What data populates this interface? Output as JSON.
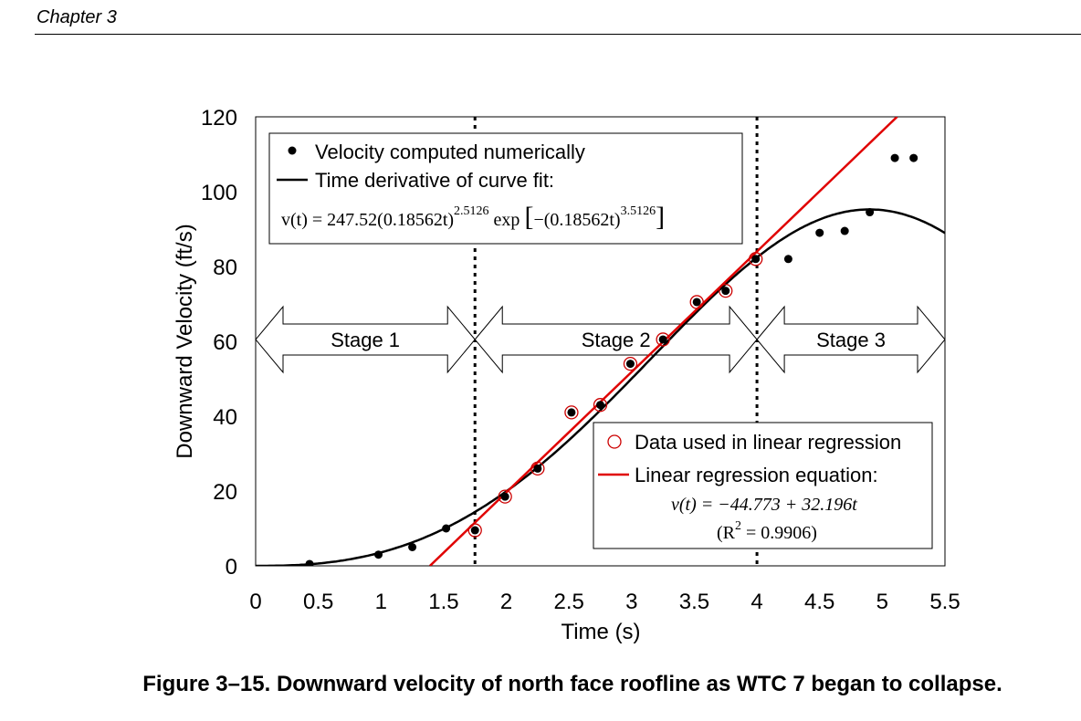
{
  "header": {
    "chapter": "Chapter 3"
  },
  "caption": "Figure 3–15.  Downward velocity of north face roofline as WTC 7 began to collapse.",
  "chart_data": {
    "type": "scatter",
    "xlabel": "Time (s)",
    "ylabel": "Downward Velocity (ft/s)",
    "xlim": [
      0,
      5.5
    ],
    "ylim": [
      0,
      120
    ],
    "xticks": [
      "0",
      "0.5",
      "1",
      "1.5",
      "2",
      "2.5",
      "3",
      "3.5",
      "4",
      "4.5",
      "5",
      "5.5"
    ],
    "yticks": [
      "0",
      "20",
      "40",
      "60",
      "80",
      "100",
      "120"
    ],
    "stage_boundaries": [
      1.75,
      4.0
    ],
    "stages": [
      "Stage 1",
      "Stage 2",
      "Stage 3"
    ],
    "series": [
      {
        "name": "Velocity computed numerically",
        "marker": "filled-circle",
        "color": "#000000",
        "x": [
          0.43,
          0.98,
          1.25,
          1.52,
          1.75,
          1.99,
          2.25,
          2.52,
          2.75,
          2.99,
          3.25,
          3.52,
          3.75,
          3.99,
          4.25,
          4.5,
          4.7,
          4.9,
          5.1,
          5.25
        ],
        "y": [
          0.5,
          3,
          5,
          10,
          9.5,
          18.5,
          26,
          41,
          43,
          54,
          60.5,
          70.5,
          73.5,
          82,
          82,
          89,
          89.5,
          94.5,
          109,
          109
        ]
      },
      {
        "name": "Data used in linear regression",
        "marker": "open-circle",
        "color": "#cc0000",
        "x": [
          1.75,
          1.99,
          2.25,
          2.52,
          2.75,
          2.99,
          3.25,
          3.52,
          3.75,
          3.99
        ],
        "y": [
          9.5,
          18.5,
          26,
          41,
          43,
          54,
          60.5,
          70.5,
          73.5,
          82
        ]
      },
      {
        "name": "Time derivative of curve fit:",
        "type": "line",
        "color": "#000000",
        "equation": {
          "A": 247.52,
          "k": 0.18562,
          "n": 2.5126
        }
      },
      {
        "name": "Linear regression equation:",
        "type": "line",
        "color": "#e00000",
        "equation": {
          "intercept": -44.773,
          "slope": 32.196
        }
      }
    ],
    "legend_top": {
      "entries": [
        "Velocity computed numerically",
        "Time derivative of curve fit:"
      ],
      "formula": {
        "lhs": "v(t) = 247.52",
        "paren1": "(0.18562t)",
        "exp1": "2.5126",
        "exp_word": "exp",
        "paren2": "−(0.18562t)",
        "exp2": "3.5126"
      }
    },
    "legend_bottom": {
      "entries": [
        "Data used in linear regression",
        "Linear regression equation:"
      ],
      "equation": "v(t) = −44.773 + 32.196t",
      "r2_lhs": "(R",
      "r2_exp": "2",
      "r2_rhs": " = 0.9906)"
    }
  }
}
